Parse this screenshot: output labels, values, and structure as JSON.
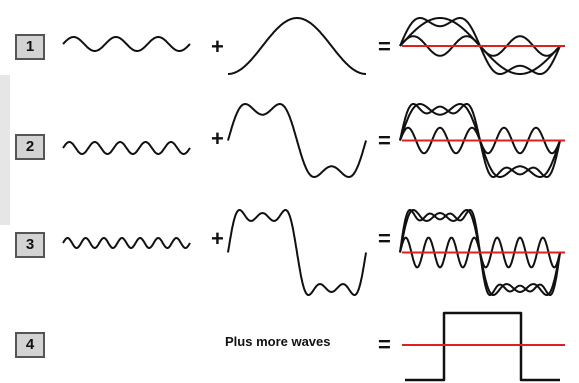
{
  "rows": [
    {
      "step": "1",
      "plus": "+",
      "equals": "="
    },
    {
      "step": "2",
      "plus": "+",
      "equals": "="
    },
    {
      "step": "3",
      "plus": "+",
      "equals": "="
    },
    {
      "step": "4",
      "caption": "Plus more waves",
      "equals": "="
    }
  ],
  "colors": {
    "wave": "#111111",
    "baseline": "#e02020",
    "box": "#d3d3d3"
  }
}
